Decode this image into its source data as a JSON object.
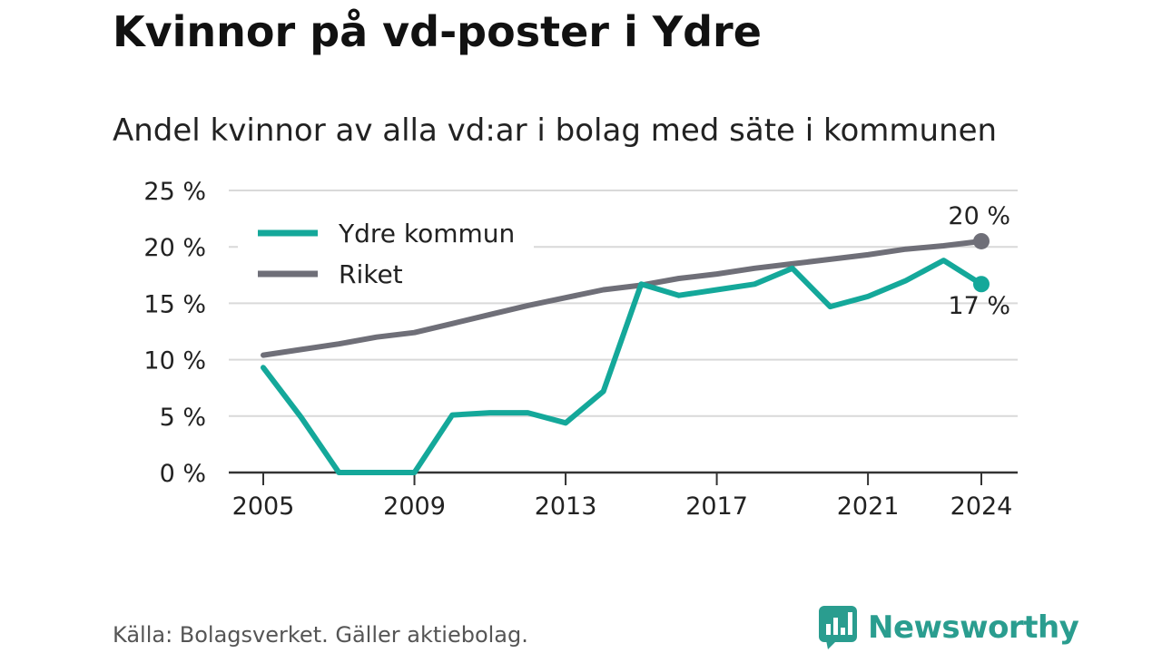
{
  "header": {
    "title": "Kvinnor på vd-poster i Ydre",
    "subtitle": "Andel kvinnor av alla vd:ar i bolag med säte i kommunen"
  },
  "footer": {
    "source": "Källa: Bolagsverket. Gäller aktiebolag.",
    "brand": "Newsworthy",
    "brand_icon": "newsworthy-logo-icon"
  },
  "colors": {
    "ydre": "#14a89a",
    "riket": "#6f6f78",
    "grid": "#d9d9d9",
    "axis": "#333333",
    "brand": "#2a9d8f"
  },
  "chart_data": {
    "type": "line",
    "title": "Kvinnor på vd-poster i Ydre",
    "subtitle": "Andel kvinnor av alla vd:ar i bolag med säte i kommunen",
    "x": [
      2005,
      2006,
      2007,
      2008,
      2009,
      2010,
      2011,
      2012,
      2013,
      2014,
      2015,
      2016,
      2017,
      2018,
      2019,
      2020,
      2021,
      2022,
      2023,
      2024
    ],
    "xticks": [
      2005,
      2009,
      2013,
      2017,
      2021,
      2024
    ],
    "xlim": [
      2005,
      2024
    ],
    "ylim": [
      0,
      25
    ],
    "yticks": [
      0,
      5,
      10,
      15,
      20,
      25
    ],
    "ytick_labels": [
      "0 %",
      "5 %",
      "10 %",
      "15 %",
      "20 %",
      "25 %"
    ],
    "grid": true,
    "legend": "top-left",
    "series": [
      {
        "name": "Ydre kommun",
        "color": "#14a89a",
        "values": [
          9.3,
          4.9,
          0,
          0,
          0,
          5.1,
          5.3,
          5.3,
          4.4,
          7.2,
          16.7,
          15.7,
          16.2,
          16.7,
          18.1,
          14.7,
          15.6,
          17.0,
          18.8,
          16.7
        ],
        "end_label": "17 %"
      },
      {
        "name": "Riket",
        "color": "#6f6f78",
        "values": [
          10.4,
          10.9,
          11.4,
          12.0,
          12.4,
          13.2,
          14.0,
          14.8,
          15.5,
          16.2,
          16.6,
          17.2,
          17.6,
          18.1,
          18.5,
          18.9,
          19.3,
          19.8,
          20.1,
          20.5
        ],
        "end_label": "20 %"
      }
    ]
  }
}
